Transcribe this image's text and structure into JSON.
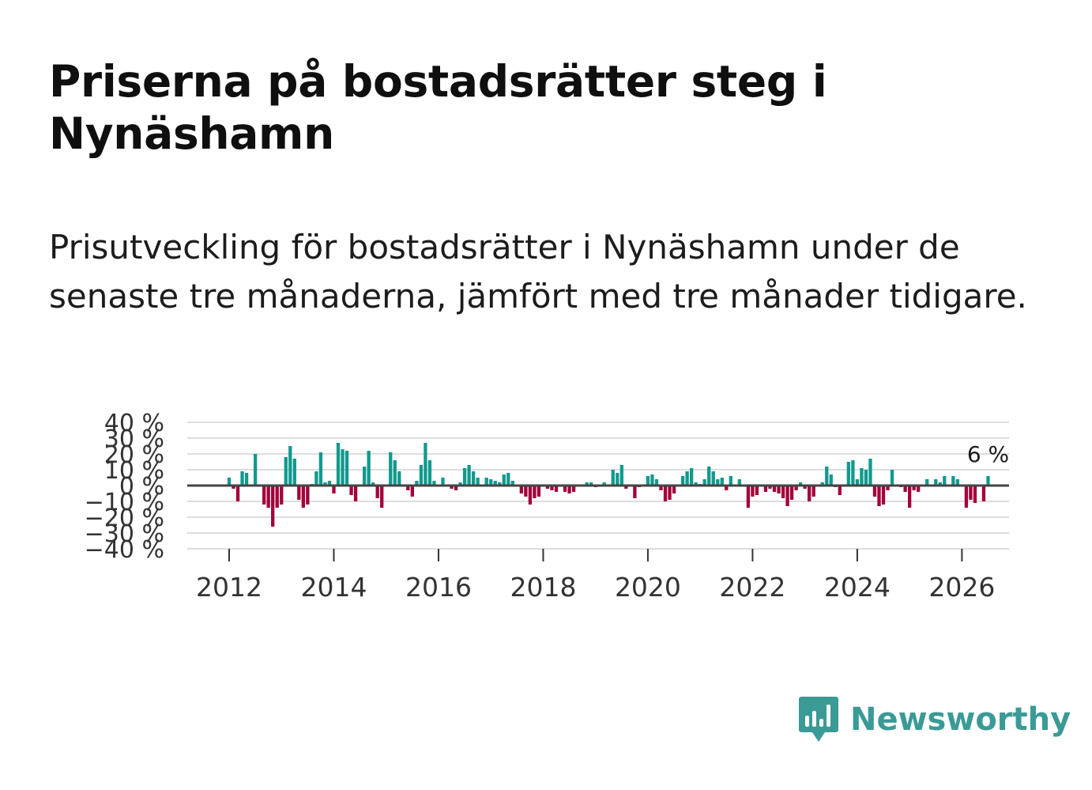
{
  "header": {
    "title": "Priserna på bostadsrätter steg i Nynäshamn",
    "subtitle": "Prisutveckling för bostadsrätter i Nynäshamn under de senaste tre månaderna, jämfört med tre månader tidigare."
  },
  "brand": {
    "name": "Newsworthy",
    "color": "#3a9a96"
  },
  "colors": {
    "positive": "#11998e",
    "negative": "#a3003b",
    "grid": "#dddddd",
    "zero": "#444444"
  },
  "chart_data": {
    "type": "bar",
    "title": "Priserna på bostadsrätter steg i Nynäshamn",
    "xlabel": "",
    "ylabel": "",
    "ylim": [
      -40,
      40
    ],
    "yticks": [
      -40,
      -30,
      -20,
      -10,
      0,
      10,
      20,
      30,
      40
    ],
    "ytick_labels": [
      "−40 %",
      "−30 %",
      "−20 %",
      "−10 %",
      "0 %",
      "10 %",
      "20 %",
      "30 %",
      "40 %"
    ],
    "xlim": [
      2011.2,
      2026.9
    ],
    "xticks": [
      2012,
      2014,
      2016,
      2018,
      2020,
      2022,
      2024,
      2026
    ],
    "xtick_labels": [
      "2012",
      "2014",
      "2016",
      "2018",
      "2020",
      "2022",
      "2024",
      "2026"
    ],
    "last_value_label": "6 %",
    "start": "2012-01",
    "frequency": "monthly",
    "values": [
      5,
      -2,
      -10,
      9,
      8,
      0,
      20,
      0,
      -12,
      -14,
      -26,
      -14,
      -12,
      18,
      25,
      17,
      -9,
      -14,
      -12,
      1,
      9,
      21,
      2,
      3,
      -5,
      27,
      23,
      22,
      -6,
      -10,
      0,
      12,
      22,
      2,
      -8,
      -14,
      0,
      21,
      16,
      9,
      0,
      -3,
      -7,
      3,
      13,
      27,
      16,
      3,
      0,
      5,
      0,
      -2,
      -3,
      2,
      11,
      13,
      9,
      5,
      0,
      5,
      4,
      3,
      2,
      7,
      8,
      3,
      0,
      -5,
      -7,
      -12,
      -8,
      -7,
      0,
      -2,
      -3,
      -4,
      0,
      -4,
      -5,
      -4,
      0,
      0,
      2,
      2,
      -1,
      0,
      2,
      0,
      10,
      8,
      13,
      -2,
      0,
      -8,
      -1,
      0,
      6,
      7,
      4,
      -3,
      -10,
      -9,
      -5,
      0,
      6,
      9,
      11,
      2,
      1,
      4,
      12,
      9,
      4,
      5,
      -3,
      6,
      0,
      4,
      0,
      -14,
      -7,
      -6,
      0,
      -4,
      -2,
      -4,
      -5,
      -8,
      -13,
      -9,
      -3,
      2,
      -2,
      -10,
      -7,
      0,
      2,
      12,
      7,
      -1,
      -6,
      0,
      15,
      16,
      4,
      11,
      10,
      17,
      -7,
      -13,
      -12,
      -3,
      10,
      0,
      -1,
      -4,
      -14,
      -3,
      -4,
      0,
      4,
      0,
      4,
      2,
      6,
      0,
      6,
      4,
      0,
      -14,
      -9,
      -11,
      0,
      -10,
      6
    ]
  }
}
